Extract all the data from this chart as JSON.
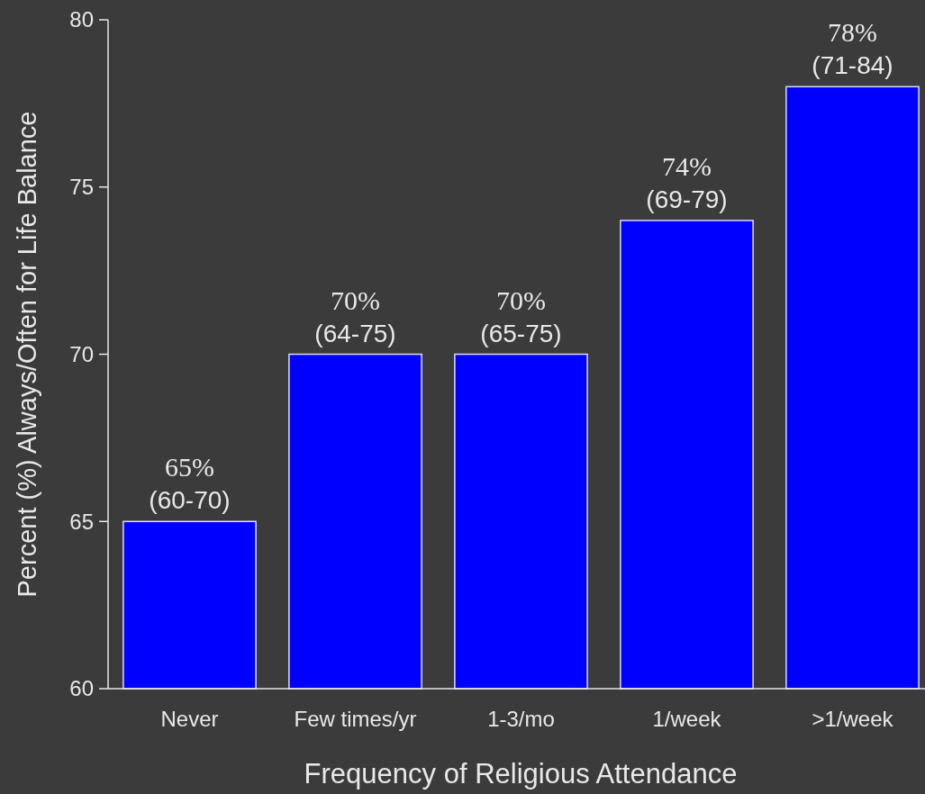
{
  "chart_data": {
    "type": "bar",
    "xlabel": "Frequency of Religious Attendance",
    "ylabel": "Percent (%) Always/Often for Life Balance",
    "categories": [
      "Never",
      "Few times/yr",
      "1-3/mo",
      "1/week",
      ">1/week"
    ],
    "values": [
      65,
      70,
      70,
      74,
      78
    ],
    "value_labels": [
      "65%\n(60-70)",
      "70%\n(64-75)",
      "70%\n(65-75)",
      "74%\n(69-79)",
      "78%\n(71-84)"
    ],
    "color": "#0000ff",
    "ylim": [
      60,
      80
    ],
    "yticks": [
      60,
      65,
      70,
      75,
      80
    ],
    "grid": false
  }
}
